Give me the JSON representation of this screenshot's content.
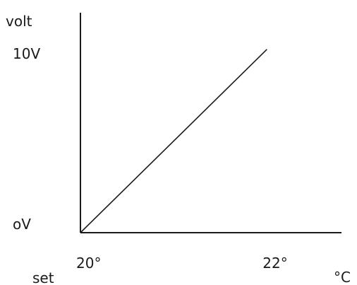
{
  "chart_data": {
    "type": "line",
    "ylabel": "volt",
    "xlabel": "°C",
    "x_corner_label": "set",
    "x_ticks": [
      {
        "value": 20,
        "label": "20°"
      },
      {
        "value": 22,
        "label": "22°"
      }
    ],
    "y_ticks": [
      {
        "value": 0,
        "label": "oV"
      },
      {
        "value": 10,
        "label": "10V"
      }
    ],
    "series": [
      {
        "points": [
          {
            "x": 20,
            "y": 0
          },
          {
            "x": 22,
            "y": 10
          }
        ]
      }
    ],
    "xlim": [
      20,
      22.8
    ],
    "ylim": [
      0,
      12
    ],
    "grid": false,
    "colors": {
      "axis": "#1a1a1a",
      "line": "#1a1a1a",
      "background": "#ffffff"
    }
  }
}
